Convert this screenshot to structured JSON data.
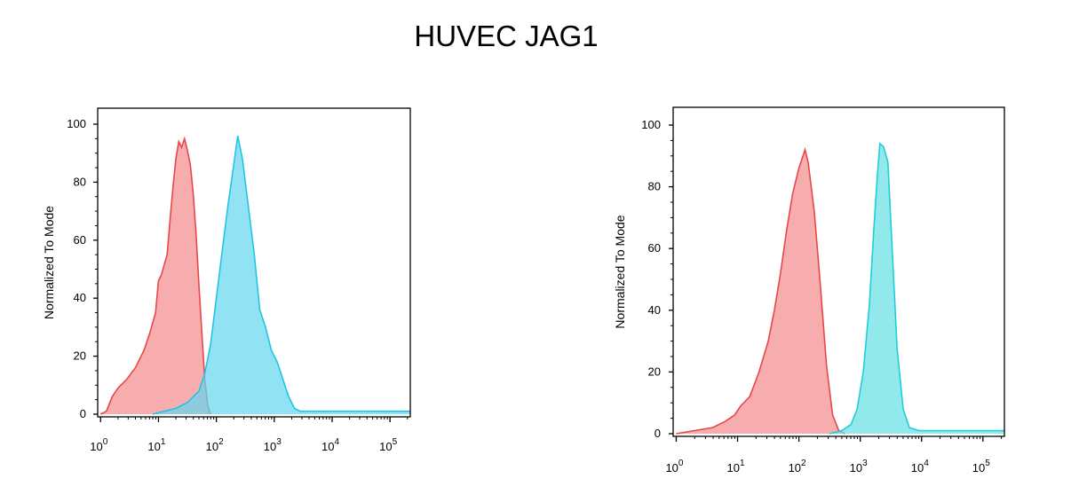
{
  "title": "HUVEC JAG1",
  "chart_data": [
    {
      "type": "area",
      "ylabel": "Normalized To Mode",
      "ylim": [
        0,
        100
      ],
      "yticks": [
        "0",
        "20",
        "40",
        "60",
        "80",
        "100"
      ],
      "xscale": "log",
      "xticks": [
        {
          "base": "10",
          "exp": "0"
        },
        {
          "base": "10",
          "exp": "1"
        },
        {
          "base": "10",
          "exp": "2"
        },
        {
          "base": "10",
          "exp": "3"
        },
        {
          "base": "10",
          "exp": "4"
        },
        {
          "base": "10",
          "exp": "5"
        }
      ],
      "series": [
        {
          "color": "#e8474a",
          "fill": "#f48d8e",
          "points": [
            [
              0.0,
              0
            ],
            [
              0.1,
              1
            ],
            [
              0.2,
              6
            ],
            [
              0.3,
              9
            ],
            [
              0.45,
              12
            ],
            [
              0.6,
              16
            ],
            [
              0.75,
              22
            ],
            [
              0.85,
              28
            ],
            [
              0.95,
              35
            ],
            [
              1.0,
              46
            ],
            [
              1.05,
              48
            ],
            [
              1.15,
              55
            ],
            [
              1.2,
              67
            ],
            [
              1.25,
              78
            ],
            [
              1.3,
              88
            ],
            [
              1.35,
              94
            ],
            [
              1.4,
              92
            ],
            [
              1.45,
              95
            ],
            [
              1.5,
              91
            ],
            [
              1.55,
              86
            ],
            [
              1.6,
              76
            ],
            [
              1.65,
              62
            ],
            [
              1.7,
              44
            ],
            [
              1.75,
              28
            ],
            [
              1.8,
              12
            ],
            [
              1.85,
              3
            ],
            [
              1.9,
              0
            ]
          ]
        },
        {
          "color": "#22c4e6",
          "fill": "#66d7ef",
          "points": [
            [
              0.9,
              0
            ],
            [
              1.1,
              1
            ],
            [
              1.3,
              2
            ],
            [
              1.5,
              4
            ],
            [
              1.7,
              8
            ],
            [
              1.8,
              14
            ],
            [
              1.9,
              24
            ],
            [
              2.0,
              40
            ],
            [
              2.1,
              56
            ],
            [
              2.2,
              72
            ],
            [
              2.3,
              86
            ],
            [
              2.37,
              96
            ],
            [
              2.45,
              88
            ],
            [
              2.55,
              72
            ],
            [
              2.65,
              56
            ],
            [
              2.75,
              36
            ],
            [
              2.85,
              30
            ],
            [
              2.95,
              22
            ],
            [
              3.05,
              18
            ],
            [
              3.15,
              12
            ],
            [
              3.25,
              6
            ],
            [
              3.35,
              2
            ],
            [
              3.45,
              1
            ],
            [
              3.8,
              1
            ],
            [
              4.3,
              1
            ],
            [
              4.8,
              1
            ],
            [
              5.35,
              1
            ]
          ]
        }
      ]
    },
    {
      "type": "area",
      "ylabel": "Normalized To Mode",
      "ylim": [
        0,
        100
      ],
      "yticks": [
        "0",
        "20",
        "40",
        "60",
        "80",
        "100"
      ],
      "xscale": "log",
      "xticks": [
        {
          "base": "10",
          "exp": "0"
        },
        {
          "base": "10",
          "exp": "1"
        },
        {
          "base": "10",
          "exp": "2"
        },
        {
          "base": "10",
          "exp": "3"
        },
        {
          "base": "10",
          "exp": "4"
        },
        {
          "base": "10",
          "exp": "5"
        }
      ],
      "series": [
        {
          "color": "#e8474a",
          "fill": "#f48d8e",
          "points": [
            [
              0.0,
              0
            ],
            [
              0.3,
              1
            ],
            [
              0.6,
              2
            ],
            [
              0.8,
              4
            ],
            [
              0.95,
              6
            ],
            [
              1.05,
              9
            ],
            [
              1.2,
              12
            ],
            [
              1.35,
              20
            ],
            [
              1.5,
              30
            ],
            [
              1.6,
              40
            ],
            [
              1.7,
              52
            ],
            [
              1.8,
              66
            ],
            [
              1.9,
              78
            ],
            [
              2.0,
              86
            ],
            [
              2.1,
              92
            ],
            [
              2.15,
              88
            ],
            [
              2.25,
              72
            ],
            [
              2.35,
              48
            ],
            [
              2.45,
              22
            ],
            [
              2.55,
              6
            ],
            [
              2.65,
              1
            ],
            [
              2.75,
              0
            ]
          ]
        },
        {
          "color": "#1fcfd6",
          "fill": "#66e1e3",
          "points": [
            [
              2.5,
              0
            ],
            [
              2.7,
              1
            ],
            [
              2.85,
              3
            ],
            [
              2.95,
              8
            ],
            [
              3.05,
              20
            ],
            [
              3.15,
              42
            ],
            [
              3.22,
              66
            ],
            [
              3.28,
              84
            ],
            [
              3.32,
              94
            ],
            [
              3.38,
              93
            ],
            [
              3.45,
              88
            ],
            [
              3.52,
              60
            ],
            [
              3.6,
              28
            ],
            [
              3.7,
              8
            ],
            [
              3.8,
              2
            ],
            [
              3.95,
              1
            ],
            [
              4.5,
              1
            ],
            [
              5.2,
              1
            ],
            [
              5.35,
              1
            ]
          ]
        }
      ]
    }
  ]
}
